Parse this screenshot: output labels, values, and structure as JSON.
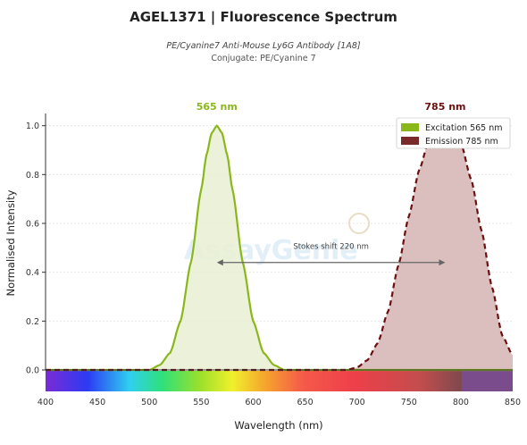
{
  "header": {
    "title": "AGEL1371  |  Fluorescence Spectrum",
    "subtitle": "PE/Cyanine7 Anti-Mouse Ly6G Antibody [1A8]",
    "conjugate": "Conjugate: PE/Cyanine 7"
  },
  "watermark": "AssayGenie",
  "colors": {
    "excitation": "#8ab71a",
    "excitation_fill": "#e9f0d3",
    "emission": "#6b0f0f",
    "emission_fill": "#d9bcbc",
    "emission_legend": "#7b2a2a"
  },
  "chart_data": {
    "type": "line",
    "xlabel": "Wavelength (nm)",
    "ylabel": "Normalised Intensity",
    "xlim": [
      400,
      850
    ],
    "ylim": [
      0,
      1.05
    ],
    "xticks": [
      "400",
      "450",
      "500",
      "550",
      "600",
      "650",
      "700",
      "750",
      "800",
      "850"
    ],
    "yticks": [
      "0.0",
      "0.2",
      "0.4",
      "0.6",
      "0.8",
      "1.0"
    ],
    "grid": true,
    "legend_position": "top-right",
    "peak_labels": [
      {
        "text": "565 nm",
        "series": "excitation"
      },
      {
        "text": "785 nm",
        "series": "emission"
      }
    ],
    "annotation": "Stokes shift  220 nm",
    "series": [
      {
        "name": "Excitation",
        "legend": "Excitation  565 nm",
        "peak": 565,
        "style": "solid",
        "x": [
          400,
          500,
          510,
          520,
          530,
          540,
          550,
          555,
          560,
          565,
          570,
          575,
          580,
          590,
          600,
          610,
          620,
          630,
          850
        ],
        "y": [
          0,
          0.0,
          0.02,
          0.07,
          0.2,
          0.44,
          0.74,
          0.88,
          0.97,
          1.0,
          0.97,
          0.88,
          0.74,
          0.44,
          0.2,
          0.07,
          0.02,
          0.0,
          0
        ]
      },
      {
        "name": "Emission",
        "legend": "Emission  785 nm",
        "peak": 785,
        "style": "dashed",
        "x": [
          400,
          690,
          700,
          710,
          720,
          730,
          740,
          750,
          760,
          770,
          780,
          785,
          790,
          800,
          810,
          820,
          830,
          840,
          850
        ],
        "y": [
          0,
          0.0,
          0.01,
          0.04,
          0.11,
          0.24,
          0.43,
          0.63,
          0.82,
          0.95,
          1.0,
          1.0,
          0.99,
          0.93,
          0.78,
          0.57,
          0.34,
          0.14,
          0.06
        ]
      }
    ]
  }
}
